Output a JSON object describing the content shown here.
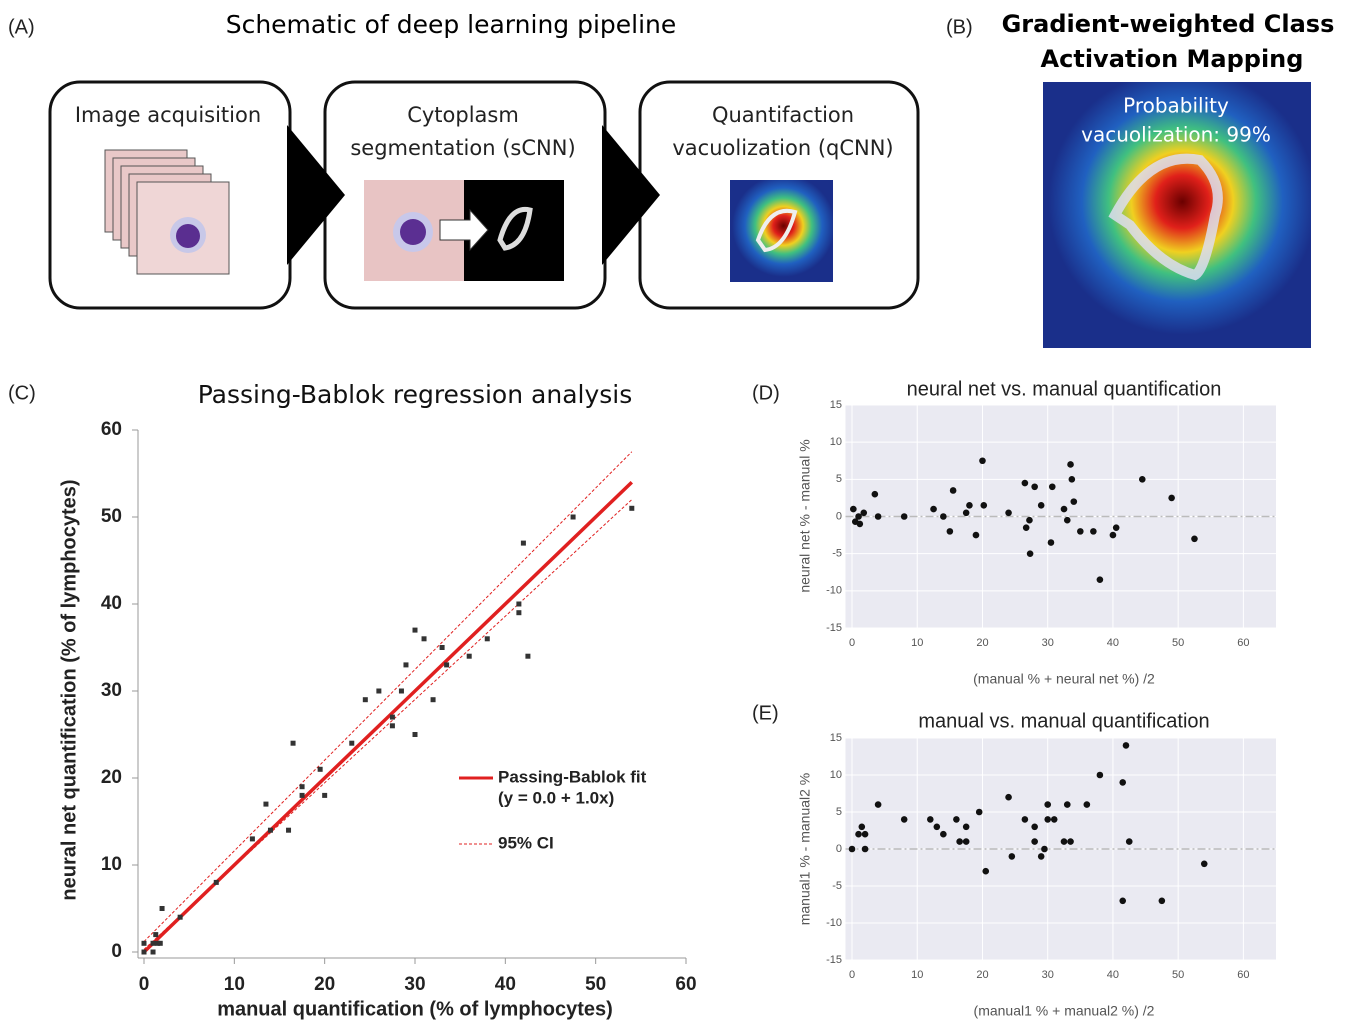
{
  "panel_labels": [
    "(A)",
    "(B)",
    "(C)",
    "(D)",
    "(E)"
  ],
  "schematic": {
    "title": "Schematic of deep learning pipeline",
    "steps": [
      [
        "Image acquisition"
      ],
      [
        "Cytoplasm",
        "segmentation (sCNN)"
      ],
      [
        "Quantifaction",
        "vacuolization (qCNN)"
      ]
    ]
  },
  "gradcam": {
    "title": [
      "Gradient-weighted Class",
      "Activation Mapping"
    ],
    "caption": [
      "Probability",
      "vacuolization: 99%"
    ]
  },
  "chart_data": [
    {
      "type": "scatter",
      "title": "Passing-Bablok regression analysis",
      "xlabel": "manual quantification (% of lymphocytes)",
      "ylabel": "neural net quantification (% of lymphocytes)",
      "marker": "square",
      "color": "#333333",
      "grid": false,
      "x": [
        0,
        0,
        1,
        1,
        1.3,
        1.5,
        1.8,
        2,
        4,
        8,
        12,
        13.5,
        14,
        16,
        16.5,
        17.5,
        17.5,
        19.5,
        20,
        23,
        24.5,
        26,
        27.5,
        27.5,
        28.5,
        29,
        30,
        30,
        31,
        32,
        33,
        33.5,
        36,
        38,
        41.5,
        41.5,
        42,
        42.5,
        47.5,
        54
      ],
      "values": [
        0,
        1,
        0,
        1,
        2,
        1,
        1,
        5,
        4,
        8,
        13,
        17,
        14,
        14,
        24,
        19,
        18,
        21,
        18,
        24,
        29,
        30,
        27,
        26,
        30,
        33,
        37,
        25,
        36,
        29,
        35,
        33,
        34,
        36,
        39,
        40,
        47,
        34,
        50,
        51
      ],
      "xlim": [
        0,
        60
      ],
      "ylim": [
        0,
        60
      ],
      "xticks": [
        0,
        10,
        20,
        30,
        40,
        50,
        60
      ],
      "yticks": [
        0,
        10,
        20,
        30,
        40,
        50,
        60
      ],
      "lines": [
        {
          "name": "Passing-Bablok fit",
          "equation": "(y = 0.0 + 1.0x)",
          "color": "#e02020",
          "x": [
            0,
            54
          ],
          "values": [
            0,
            54
          ]
        },
        {
          "name": "95% CI",
          "color": "#e02020",
          "x": [
            0,
            54
          ],
          "upper": [
            1.2,
            57.5
          ],
          "lower": [
            0.3,
            52
          ]
        }
      ]
    },
    {
      "type": "scatter",
      "title": "neural net vs. manual quantification",
      "xlabel": "(manual % + neural net %) /2",
      "ylabel": "neural net % - manual %",
      "marker": "circle",
      "color": "#111111",
      "grid": true,
      "background": "#eaeaf2",
      "zero_line": true,
      "x": [
        0.2,
        0.5,
        1,
        1.2,
        1.8,
        3.5,
        4,
        8,
        12.5,
        14,
        15,
        15.5,
        17.5,
        18,
        19,
        20,
        20.2,
        24,
        26.5,
        26.7,
        27.2,
        27.3,
        28,
        29,
        30.5,
        30.7,
        32.5,
        33,
        33.5,
        33.7,
        34,
        35,
        37,
        38,
        40,
        40.5,
        44.5,
        49,
        52.5
      ],
      "values": [
        1,
        -0.7,
        0,
        -1,
        0.5,
        3,
        0,
        0,
        1,
        0,
        -2,
        3.5,
        0.5,
        1.5,
        -2.5,
        7.5,
        1.5,
        0.5,
        4.5,
        -1.5,
        -0.5,
        -5,
        4,
        1.5,
        -3.5,
        4,
        1,
        -0.5,
        7,
        5,
        2,
        -2,
        -2,
        -8.5,
        -2.5,
        -1.5,
        5,
        2.5,
        -3
      ],
      "xlim": [
        -1,
        65
      ],
      "ylim": [
        -15,
        15
      ],
      "xticks": [
        0,
        10,
        20,
        30,
        40,
        50,
        60
      ],
      "yticks": [
        -15,
        -10,
        -5,
        0,
        5,
        10,
        15
      ]
    },
    {
      "type": "scatter",
      "title": "manual vs. manual quantification",
      "xlabel": "(manual1 % + manual2 %) /2",
      "ylabel": "manual1 % - manual2 %",
      "marker": "circle",
      "color": "#111111",
      "grid": true,
      "background": "#eaeaf2",
      "zero_line": true,
      "x": [
        0,
        1,
        1.5,
        2,
        2,
        4,
        8,
        12,
        13,
        14,
        16,
        16.5,
        17.5,
        17.5,
        19.5,
        20.5,
        24,
        24.5,
        26.5,
        28,
        28,
        29,
        29.5,
        30,
        30,
        31,
        32.5,
        33,
        33.5,
        36,
        38,
        41.5,
        41.5,
        42,
        42.5,
        47.5,
        54
      ],
      "values": [
        0,
        2,
        3,
        2,
        0,
        6,
        4,
        4,
        3,
        2,
        4,
        1,
        3,
        1,
        5,
        -3,
        7,
        -1,
        4,
        3,
        1,
        -1,
        0,
        6,
        4,
        4,
        1,
        6,
        1,
        6,
        10,
        9,
        -7,
        14,
        1,
        -7,
        -2
      ],
      "xlim": [
        -1,
        65
      ],
      "ylim": [
        -15,
        15
      ],
      "xticks": [
        0,
        10,
        20,
        30,
        40,
        50,
        60
      ],
      "yticks": [
        -15,
        -10,
        -5,
        0,
        5,
        10,
        15
      ]
    }
  ]
}
